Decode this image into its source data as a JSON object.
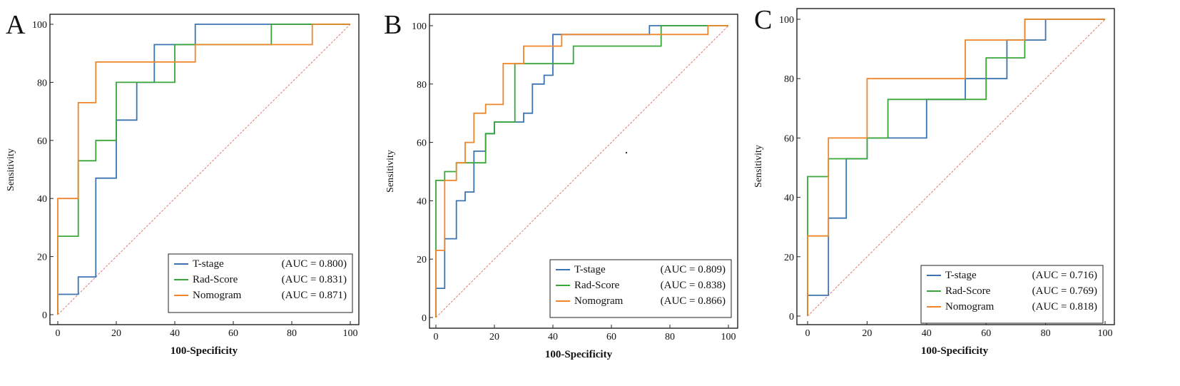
{
  "chart_data": [
    {
      "type": "line",
      "panel": "A",
      "xlabel": "100-Specificity",
      "ylabel": "Sensitivity",
      "xlim": [
        0,
        100
      ],
      "ylim": [
        0,
        100
      ],
      "xticks": [
        "0",
        "20",
        "40",
        "60",
        "80",
        "100"
      ],
      "yticks": [
        "0",
        "20",
        "40",
        "60",
        "80",
        "100"
      ],
      "legend_position": "bottom-right",
      "series": [
        {
          "name": "T-stage",
          "auc_label": "(AUC = 0.800)",
          "color": "#3c74b3",
          "x": [
            0,
            0,
            7,
            7,
            13,
            13,
            20,
            20,
            27,
            27,
            33,
            33,
            40,
            40,
            47,
            47,
            73,
            73,
            100
          ],
          "y": [
            0,
            7,
            7,
            13,
            13,
            47,
            47,
            67,
            67,
            80,
            80,
            93,
            93,
            93,
            93,
            100,
            100,
            100,
            100
          ]
        },
        {
          "name": "Rad-Score",
          "auc_label": "(AUC = 0.831)",
          "color": "#3aa63a",
          "x": [
            0,
            0,
            7,
            7,
            13,
            13,
            20,
            20,
            40,
            40,
            73,
            73,
            100
          ],
          "y": [
            0,
            27,
            27,
            53,
            53,
            60,
            60,
            80,
            80,
            93,
            93,
            100,
            100
          ]
        },
        {
          "name": "Nomogram",
          "auc_label": "(AUC = 0.871)",
          "color": "#f0862a",
          "x": [
            0,
            0,
            7,
            7,
            13,
            13,
            47,
            47,
            87,
            87,
            100
          ],
          "y": [
            0,
            40,
            40,
            73,
            73,
            87,
            87,
            93,
            93,
            100,
            100
          ]
        }
      ]
    },
    {
      "type": "line",
      "panel": "B",
      "xlabel": "100-Specificity",
      "ylabel": "Sensitivity",
      "xlim": [
        0,
        100
      ],
      "ylim": [
        0,
        100
      ],
      "xticks": [
        "0",
        "20",
        "40",
        "60",
        "80",
        "100"
      ],
      "yticks": [
        "0",
        "20",
        "40",
        "60",
        "80",
        "100"
      ],
      "legend_position": "bottom-right",
      "series": [
        {
          "name": "T-stage",
          "auc_label": "(AUC = 0.809)",
          "color": "#3c74b3",
          "x": [
            0,
            0,
            3,
            3,
            7,
            7,
            10,
            10,
            13,
            13,
            17,
            17,
            20,
            20,
            23,
            23,
            30,
            30,
            33,
            33,
            37,
            37,
            40,
            40,
            73,
            73,
            100
          ],
          "y": [
            0,
            10,
            10,
            27,
            27,
            40,
            40,
            43,
            43,
            57,
            57,
            63,
            63,
            67,
            67,
            67,
            67,
            70,
            70,
            80,
            80,
            83,
            83,
            97,
            97,
            100,
            100
          ]
        },
        {
          "name": "Rad-Score",
          "auc_label": "(AUC = 0.838)",
          "color": "#3aa63a",
          "x": [
            0,
            0,
            3,
            3,
            7,
            7,
            13,
            13,
            17,
            17,
            20,
            20,
            27,
            27,
            47,
            47,
            77,
            77,
            100
          ],
          "y": [
            0,
            47,
            47,
            50,
            50,
            53,
            53,
            53,
            53,
            63,
            63,
            67,
            67,
            87,
            87,
            93,
            93,
            100,
            100
          ]
        },
        {
          "name": "Nomogram",
          "auc_label": "(AUC = 0.866)",
          "color": "#f0862a",
          "x": [
            0,
            0,
            3,
            3,
            7,
            7,
            10,
            10,
            13,
            13,
            17,
            17,
            23,
            23,
            30,
            30,
            43,
            43,
            93,
            93,
            100
          ],
          "y": [
            0,
            23,
            23,
            47,
            47,
            53,
            53,
            60,
            60,
            70,
            70,
            73,
            73,
            87,
            87,
            93,
            93,
            97,
            97,
            100,
            100
          ]
        }
      ]
    },
    {
      "type": "line",
      "panel": "C",
      "xlabel": "100-Specificity",
      "ylabel": "Sensitivity",
      "xlim": [
        0,
        100
      ],
      "ylim": [
        0,
        100
      ],
      "xticks": [
        "0",
        "20",
        "40",
        "60",
        "80",
        "100"
      ],
      "yticks": [
        "0",
        "20",
        "40",
        "60",
        "80",
        "100"
      ],
      "legend_position": "bottom-right",
      "series": [
        {
          "name": "T-stage",
          "auc_label": "(AUC = 0.716)",
          "color": "#3c74b3",
          "x": [
            0,
            0,
            7,
            7,
            13,
            13,
            20,
            20,
            40,
            40,
            53,
            53,
            67,
            67,
            80,
            80,
            100
          ],
          "y": [
            0,
            7,
            7,
            33,
            33,
            53,
            53,
            60,
            60,
            73,
            73,
            80,
            80,
            93,
            93,
            100,
            100
          ]
        },
        {
          "name": "Rad-Score",
          "auc_label": "(AUC = 0.769)",
          "color": "#3aa63a",
          "x": [
            0,
            0,
            7,
            7,
            20,
            20,
            27,
            27,
            60,
            60,
            73,
            73,
            100
          ],
          "y": [
            0,
            47,
            47,
            53,
            53,
            60,
            60,
            73,
            73,
            87,
            87,
            100,
            100
          ]
        },
        {
          "name": "Nomogram",
          "auc_label": "(AUC = 0.818)",
          "color": "#f0862a",
          "x": [
            0,
            0,
            7,
            7,
            20,
            20,
            53,
            53,
            73,
            73,
            100
          ],
          "y": [
            0,
            27,
            27,
            60,
            60,
            80,
            80,
            93,
            93,
            100,
            100
          ]
        }
      ]
    }
  ],
  "reference_line_color": "#e07a6e"
}
